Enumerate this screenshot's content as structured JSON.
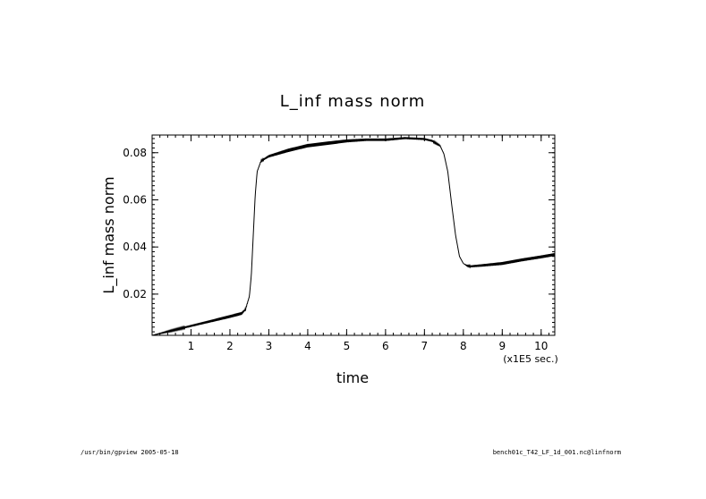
{
  "chart_data": {
    "type": "line",
    "title": "L_inf mass norm",
    "xlabel": "time",
    "ylabel": "L_inf mass norm",
    "x_unit_label": "(x1E5 sec.)",
    "xlim": [
      0,
      10.35
    ],
    "ylim": [
      0.0025,
      0.0875
    ],
    "xticks": [
      1,
      2,
      3,
      4,
      5,
      6,
      7,
      8,
      9,
      10
    ],
    "yticks": [
      0.02,
      0.04,
      0.06,
      0.08
    ],
    "ytick_labels": [
      "0.02",
      "0.04",
      "0.06",
      "0.08"
    ],
    "grid": false,
    "series": [
      {
        "x": [
          0,
          0.5,
          1.0,
          1.5,
          2.0,
          2.3,
          2.4,
          2.5,
          2.55,
          2.6,
          2.65,
          2.7,
          2.8,
          3.0,
          3.5,
          4.0,
          4.5,
          5.0,
          5.5,
          6.0,
          6.5,
          7.0,
          7.2,
          7.4,
          7.5,
          7.6,
          7.7,
          7.8,
          7.9,
          8.0,
          8.1,
          8.2,
          8.5,
          9.0,
          9.5,
          10.0,
          10.35
        ],
        "y": [
          0.0025,
          0.0045,
          0.0065,
          0.0085,
          0.0105,
          0.0118,
          0.0135,
          0.019,
          0.028,
          0.045,
          0.062,
          0.072,
          0.0765,
          0.0785,
          0.081,
          0.083,
          0.084,
          0.085,
          0.0855,
          0.0855,
          0.0862,
          0.0858,
          0.085,
          0.083,
          0.0795,
          0.072,
          0.058,
          0.045,
          0.036,
          0.033,
          0.032,
          0.0318,
          0.0322,
          0.033,
          0.0345,
          0.0358,
          0.0368
        ],
        "osc_amp": [
          0,
          0.0003,
          0.0004,
          0.0005,
          0.0006,
          0.0006,
          0.0004,
          0,
          0,
          0,
          0,
          0,
          0.0003,
          0.0005,
          0.0007,
          0.0007,
          0.0007,
          0.0006,
          0.0005,
          0.0005,
          0.0004,
          0.0004,
          0.0004,
          0.0002,
          0,
          0,
          0,
          0,
          0,
          0,
          0.0002,
          0.0004,
          0.0005,
          0.0006,
          0.0006,
          0.0006,
          0.0006
        ]
      }
    ]
  },
  "footer": {
    "left": "/usr/bin/gpview  2005-05-18",
    "right": "bench01c_T42_LF_1d_001.nc@linfnorm"
  }
}
